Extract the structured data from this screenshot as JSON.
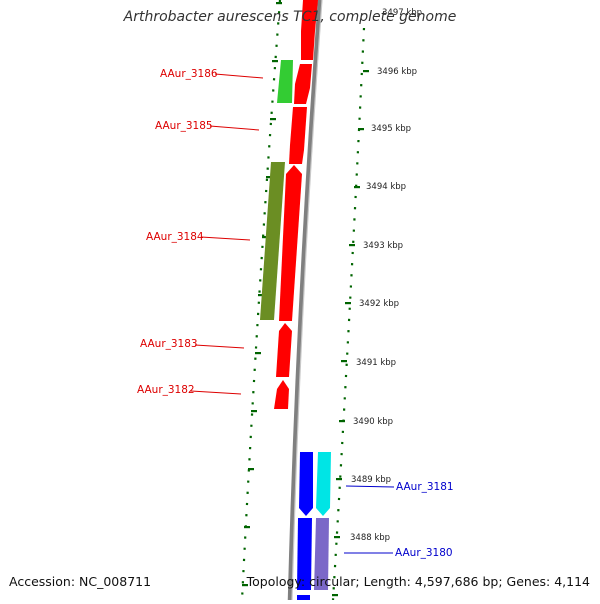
{
  "title": "Arthrobacter aurescens TC1, complete genome",
  "accession_text": "Accession: NC_008711",
  "summary_text": "Topology: circular; Length: 4,597,686 bp; Genes: 4,114",
  "ticks": [
    "3497 kbp",
    "3496 kbp",
    "3495 kbp",
    "3494 kbp",
    "3493 kbp",
    "3492 kbp",
    "3491 kbp",
    "3490 kbp",
    "3489 kbp",
    "3488 kbp"
  ],
  "genes": [
    {
      "label": "AAur_3186",
      "side": "left",
      "color": "#dd0000"
    },
    {
      "label": "AAur_3185",
      "side": "left",
      "color": "#dd0000"
    },
    {
      "label": "AAur_3184",
      "side": "left",
      "color": "#dd0000"
    },
    {
      "label": "AAur_3183",
      "side": "left",
      "color": "#dd0000"
    },
    {
      "label": "AAur_3182",
      "side": "left",
      "color": "#dd0000"
    },
    {
      "label": "AAur_3181",
      "side": "right",
      "color": "#0000cc"
    },
    {
      "label": "AAur_3180",
      "side": "right",
      "color": "#0000cc"
    }
  ],
  "colors": {
    "cds": "#ff0000",
    "cds_reverse": "#0000ff",
    "cog_green": "#33cc33",
    "cog_olive": "#6b8e23",
    "cog_cyan": "#00e5e5",
    "cog_purple": "#7b68c8",
    "backbone": "#808080",
    "ruler": "#006400"
  }
}
